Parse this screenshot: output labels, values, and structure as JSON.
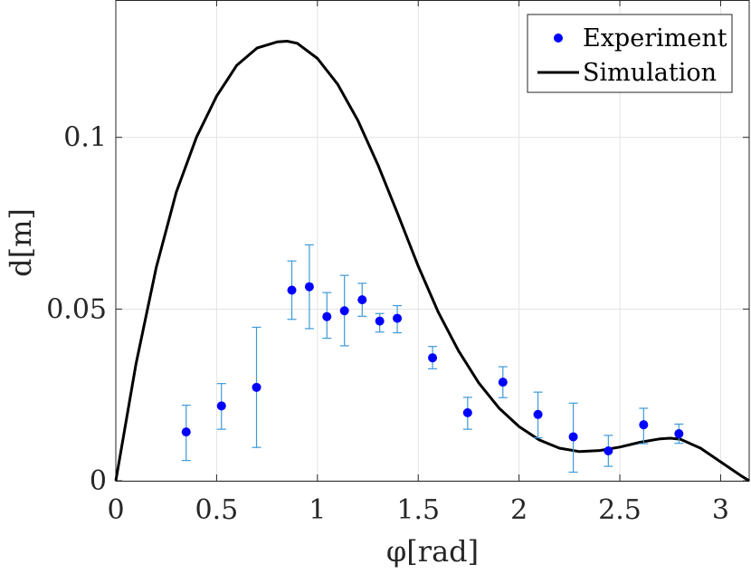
{
  "chart_data": {
    "type": "scatter",
    "title": "",
    "xlabel": "φ[rad]",
    "ylabel": "d[m]",
    "xlim": [
      0,
      3.1416
    ],
    "ylim": [
      0,
      0.14
    ],
    "xticks": [
      0,
      0.5,
      1,
      1.5,
      2,
      2.5,
      3
    ],
    "xtick_labels": [
      "0",
      "0.5",
      "1",
      "1.5",
      "2",
      "2.5",
      "3"
    ],
    "yticks": [
      0,
      0.05,
      0.1
    ],
    "ytick_labels": [
      "0",
      "0.05",
      "0.1"
    ],
    "grid": true,
    "legend_position": "top-right",
    "series": [
      {
        "name": "Experiment",
        "kind": "points-with-error-bars",
        "color": "#0000ff",
        "error_color": "#3d9ad9",
        "x": [
          0.349,
          0.524,
          0.698,
          0.873,
          0.96,
          1.047,
          1.134,
          1.222,
          1.309,
          1.396,
          1.571,
          1.745,
          1.92,
          2.094,
          2.269,
          2.443,
          2.618,
          2.793
        ],
        "y": [
          0.0142,
          0.0218,
          0.0272,
          0.0555,
          0.0565,
          0.0478,
          0.0495,
          0.0527,
          0.0465,
          0.0473,
          0.0358,
          0.0198,
          0.0287,
          0.0193,
          0.0128,
          0.0087,
          0.0163,
          0.0137
        ],
        "err_low": [
          0.0083,
          0.0068,
          0.0175,
          0.0085,
          0.0122,
          0.0063,
          0.0102,
          0.0048,
          0.0032,
          0.0042,
          0.0032,
          0.0048,
          0.0045,
          0.0068,
          0.0103,
          0.0045,
          0.0055,
          0.0028
        ],
        "err_high": [
          0.0078,
          0.0065,
          0.0175,
          0.0085,
          0.0122,
          0.007,
          0.0103,
          0.0048,
          0.0022,
          0.0037,
          0.0033,
          0.0045,
          0.0045,
          0.0065,
          0.0098,
          0.0045,
          0.0048,
          0.0028
        ]
      },
      {
        "name": "Simulation",
        "kind": "line",
        "color": "#000000",
        "x": [
          0,
          0.1,
          0.2,
          0.3,
          0.4,
          0.5,
          0.6,
          0.7,
          0.8,
          0.85,
          0.9,
          1.0,
          1.1,
          1.2,
          1.3,
          1.4,
          1.5,
          1.6,
          1.7,
          1.8,
          1.9,
          2.0,
          2.1,
          2.2,
          2.3,
          2.4,
          2.5,
          2.6,
          2.7,
          2.75,
          2.8,
          2.9,
          3.0,
          3.1,
          3.1416
        ],
        "y": [
          0,
          0.034,
          0.062,
          0.084,
          0.1,
          0.112,
          0.121,
          0.126,
          0.1278,
          0.128,
          0.1274,
          0.123,
          0.1155,
          0.105,
          0.092,
          0.0775,
          0.0625,
          0.049,
          0.0378,
          0.0285,
          0.0212,
          0.0158,
          0.0119,
          0.0095,
          0.0085,
          0.0088,
          0.0098,
          0.0112,
          0.0122,
          0.0124,
          0.0121,
          0.0095,
          0.0055,
          0.0015,
          0
        ]
      }
    ]
  }
}
